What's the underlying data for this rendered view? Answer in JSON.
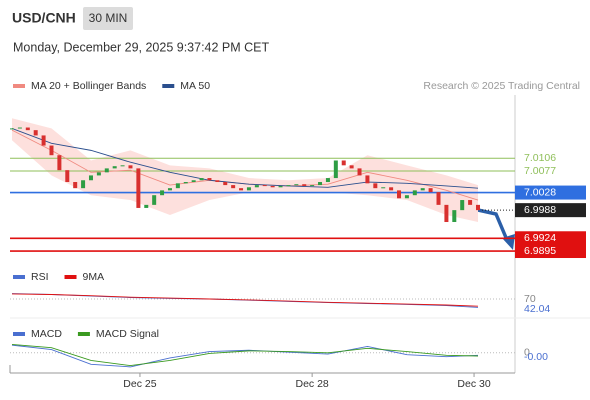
{
  "header": {
    "symbol": "USD/CNH",
    "interval": "30 MIN",
    "datetime": "Monday, December 29, 2025 9:37:42 PM CET",
    "credit": "Research © 2025 Trading Central"
  },
  "chart_data": [
    {
      "type": "candlestick",
      "up_color": "#2e9d44",
      "down_color": "#d8302f",
      "close": [
        7.0174,
        7.0176,
        7.017,
        7.0158,
        7.0135,
        7.0113,
        7.0079,
        7.0052,
        7.0038,
        7.0056,
        7.0067,
        7.0074,
        7.0083,
        7.0088,
        7.009,
        7.0083,
        6.9993,
        7.0,
        7.0022,
        7.0033,
        7.0038,
        7.0049,
        7.0052,
        7.0056,
        7.0061,
        7.0056,
        7.0052,
        7.0045,
        7.0038,
        7.0033,
        7.004,
        7.0045,
        7.0043,
        7.004,
        7.0043,
        7.0045,
        7.0047,
        7.0043,
        7.0045,
        7.0052,
        7.0061,
        7.0101,
        7.009,
        7.0083,
        7.0067,
        7.0049,
        7.0038,
        7.004,
        7.0033,
        7.0015,
        7.0022,
        7.0033,
        7.0038,
        7.0029,
        7.0,
        6.9961,
        6.9988,
        7.0011,
        7.0,
        6.9988
      ],
      "series": [
        {
          "name": "MA 20 + Bollinger Bands",
          "color": "#f08a80",
          "band_color": "#fde0dd",
          "x": [
            0,
            5,
            10,
            15,
            20,
            25,
            30,
            35,
            40,
            45,
            50,
            55,
            59
          ],
          "values": [
            7.017,
            7.0124,
            7.0074,
            7.0079,
            7.0045,
            7.0056,
            7.0047,
            7.0043,
            7.0047,
            7.0074,
            7.0056,
            7.0033,
            7.0011
          ],
          "upper": [
            7.0197,
            7.0174,
            7.0101,
            7.0124,
            7.009,
            7.0083,
            7.0061,
            7.0056,
            7.0061,
            7.0113,
            7.009,
            7.0067,
            7.0045
          ],
          "lower": [
            7.0147,
            7.0067,
            7.0022,
            7.0011,
            6.9977,
            7.0011,
            7.0029,
            7.0027,
            7.0029,
            7.0022,
            7.0011,
            6.9977,
            6.9961
          ]
        },
        {
          "name": "MA 50",
          "color": "#2b4f8e",
          "x": [
            0,
            5,
            10,
            15,
            20,
            25,
            30,
            35,
            40,
            45,
            50,
            55,
            59
          ],
          "values": [
            7.0174,
            7.014,
            7.0124,
            7.0097,
            7.0074,
            7.0056,
            7.0047,
            7.0043,
            7.004,
            7.0052,
            7.0049,
            7.0043,
            7.0038
          ]
        }
      ],
      "levels": [
        {
          "value": 7.0106,
          "color": "#8fbf5a",
          "boxed": false
        },
        {
          "value": 7.0077,
          "color": "#8fbf5a",
          "boxed": false
        },
        {
          "value": 7.0028,
          "color": "#2f6fe0",
          "boxed": true
        },
        {
          "value": 6.9924,
          "color": "#e01010",
          "boxed": true
        },
        {
          "value": 6.9895,
          "color": "#e01010",
          "boxed": true
        }
      ],
      "last_color": "#222",
      "xlim": [
        0,
        59
      ],
      "ylim": [
        6.987,
        7.025
      ],
      "xticks": [
        {
          "value": 16.2,
          "label": "Dec 25"
        },
        {
          "value": 38.0,
          "label": "Dec 28"
        },
        {
          "value": 58.5,
          "label": "Dec 30"
        }
      ]
    },
    {
      "type": "line",
      "x": [
        0,
        5,
        10,
        15,
        20,
        25,
        30,
        35,
        40,
        45,
        50,
        55,
        59
      ],
      "series": [
        {
          "name": "RSI",
          "color": "#4a6fd0",
          "values": [
            88,
            85,
            80,
            75,
            72,
            70,
            66,
            62,
            58,
            55,
            52,
            48,
            42.04
          ]
        },
        {
          "name": "9MA",
          "color": "#e01010",
          "values": [
            87,
            85,
            81,
            76,
            73,
            70,
            67,
            63,
            59,
            56,
            53,
            50,
            46
          ]
        }
      ],
      "xlim": [
        0,
        59
      ],
      "ylim": [
        0,
        100
      ],
      "yticks": [
        70
      ]
    },
    {
      "type": "line",
      "x": [
        0,
        5,
        10,
        15,
        20,
        25,
        30,
        35,
        40,
        45,
        50,
        55,
        59
      ],
      "series": [
        {
          "name": "MACD",
          "color": "#4a6fd0",
          "values": [
            0.0012,
            0.0005,
            -0.0018,
            -0.0022,
            -0.0008,
            0.0002,
            0.0004,
            0.0001,
            -0.0002,
            0.001,
            -0.0003,
            -0.0006,
            -0.0004
          ],
          "value_labels": [
            null,
            null,
            null,
            null,
            null,
            null,
            null,
            null,
            null,
            null,
            null,
            null,
            "-0.00"
          ]
        },
        {
          "name": "MACD Signal",
          "color": "#3a9a20",
          "values": [
            0.0013,
            0.0008,
            -0.0012,
            -0.002,
            -0.0012,
            -0.0001,
            0.0003,
            0.0002,
            0.0,
            0.0007,
            0.0002,
            -0.0004,
            -0.0005
          ]
        }
      ],
      "xlim": [
        0,
        59
      ],
      "ylim": [
        -0.003,
        0.002
      ],
      "yticks": [
        0
      ]
    }
  ]
}
